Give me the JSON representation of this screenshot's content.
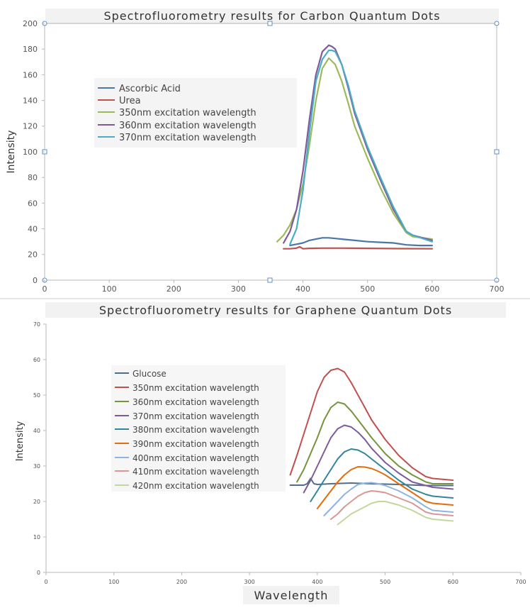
{
  "colors": {
    "axis": "#b8b8b8",
    "tick_text": "#555555",
    "title": "#333333",
    "legend_text": "#444444",
    "handle": "#5b8fc9"
  },
  "chart_data": [
    {
      "type": "line",
      "title": "Spectrofluorometry results for Carbon Quantum Dots",
      "xlabel": "",
      "ylabel": "Intensity",
      "xlim": [
        0,
        700
      ],
      "ylim": [
        0,
        200
      ],
      "xticks": [
        0,
        100,
        200,
        300,
        400,
        500,
        600,
        700
      ],
      "yticks": [
        0,
        20,
        40,
        60,
        80,
        100,
        120,
        140,
        160,
        180,
        200
      ],
      "grid": false,
      "legend_position": "left-middle",
      "series": [
        {
          "name": "Ascorbic Acid",
          "color": "#4a76a8",
          "x": [
            380,
            390,
            400,
            410,
            420,
            430,
            440,
            450,
            460,
            480,
            500,
            520,
            540,
            560,
            580,
            600
          ],
          "y": [
            27,
            28,
            29,
            31,
            32,
            33,
            33,
            32.5,
            32,
            31,
            30,
            29.5,
            29,
            27.5,
            27,
            27
          ]
        },
        {
          "name": "Urea",
          "color": "#c0504d",
          "x": [
            370,
            380,
            390,
            395,
            400,
            410,
            430,
            460,
            500,
            550,
            600
          ],
          "y": [
            24.5,
            24.5,
            25,
            26,
            24.5,
            24.8,
            25,
            25,
            24.8,
            24.6,
            24.5
          ]
        },
        {
          "name": "350nm excitation wavelength",
          "color": "#9bbb59",
          "x": [
            360,
            370,
            380,
            390,
            400,
            410,
            420,
            430,
            440,
            450,
            460,
            470,
            480,
            500,
            520,
            540,
            560,
            570,
            600
          ],
          "y": [
            30,
            35,
            43,
            55,
            75,
            105,
            140,
            165,
            173,
            168,
            155,
            138,
            120,
            95,
            72,
            52,
            37,
            34,
            32
          ]
        },
        {
          "name": "360nm excitation wavelength",
          "color": "#7f5a9a",
          "x": [
            370,
            380,
            390,
            400,
            410,
            420,
            430,
            440,
            445,
            450,
            460,
            470,
            480,
            500,
            520,
            540,
            560,
            570,
            600
          ],
          "y": [
            29,
            38,
            55,
            85,
            125,
            160,
            178,
            183,
            182,
            180,
            168,
            150,
            130,
            102,
            78,
            55,
            38,
            35,
            31
          ]
        },
        {
          "name": "370nm excitation wavelength",
          "color": "#4bacc6",
          "x": [
            380,
            390,
            400,
            410,
            420,
            430,
            440,
            445,
            450,
            460,
            470,
            480,
            500,
            520,
            540,
            560,
            570,
            600
          ],
          "y": [
            28,
            40,
            70,
            115,
            155,
            172,
            179,
            179,
            178,
            168,
            152,
            132,
            104,
            80,
            57,
            38,
            35,
            30
          ]
        }
      ]
    },
    {
      "type": "line",
      "title": "Spectrofluorometry results for Graphene Quantum Dots",
      "xlabel": "Wavelength",
      "ylabel": "Intensity",
      "xlim": [
        0,
        700
      ],
      "ylim": [
        0,
        70
      ],
      "xticks": [
        0,
        100,
        200,
        300,
        400,
        500,
        600,
        700
      ],
      "yticks": [
        0,
        10,
        20,
        30,
        40,
        50,
        60,
        70
      ],
      "grid": false,
      "legend_position": "left-middle",
      "series": [
        {
          "name": "Glucose",
          "color": "#4f6d8c",
          "x": [
            360,
            380,
            385,
            390,
            395,
            400,
            420,
            450,
            480,
            520,
            560,
            600
          ],
          "y": [
            24.6,
            24.6,
            25,
            26.5,
            25,
            24.8,
            25,
            25.2,
            25,
            24.8,
            24.5,
            24.5
          ]
        },
        {
          "name": "350nm excitation wavelength",
          "color": "#c0504d",
          "x": [
            360,
            370,
            380,
            390,
            400,
            410,
            420,
            430,
            440,
            450,
            460,
            470,
            480,
            500,
            520,
            540,
            560,
            570,
            600
          ],
          "y": [
            27.5,
            33,
            39,
            45,
            51,
            55,
            57,
            57.5,
            56.5,
            53.5,
            50,
            46.5,
            43,
            37.5,
            33,
            29.5,
            27,
            26.5,
            26
          ]
        },
        {
          "name": "360nm excitation wavelength",
          "color": "#77933c",
          "x": [
            370,
            380,
            390,
            400,
            410,
            420,
            430,
            440,
            450,
            460,
            470,
            480,
            500,
            520,
            540,
            560,
            570,
            600
          ],
          "y": [
            25.5,
            29,
            33.5,
            38,
            43,
            46.5,
            48,
            47.5,
            45.5,
            43,
            40.5,
            38,
            33.5,
            30,
            27.5,
            25.5,
            25,
            25
          ]
        },
        {
          "name": "370nm excitation wavelength",
          "color": "#7f5a9a",
          "x": [
            380,
            390,
            400,
            410,
            420,
            430,
            440,
            450,
            460,
            470,
            480,
            500,
            520,
            540,
            560,
            570,
            600
          ],
          "y": [
            22.5,
            26,
            30,
            34,
            38,
            40.5,
            41.5,
            41,
            39.5,
            37.5,
            35,
            31,
            28,
            25.5,
            24.5,
            24,
            23.5
          ]
        },
        {
          "name": "380nm excitation wavelength",
          "color": "#31859c",
          "x": [
            390,
            400,
            410,
            420,
            430,
            440,
            450,
            460,
            470,
            480,
            490,
            500,
            520,
            540,
            560,
            570,
            600
          ],
          "y": [
            20,
            23,
            26,
            29,
            32,
            34,
            34.8,
            34.5,
            33.5,
            32,
            30.5,
            29,
            26,
            23.5,
            22,
            21.5,
            21
          ]
        },
        {
          "name": "390nm excitation wavelength",
          "color": "#e46c0a",
          "x": [
            400,
            410,
            420,
            430,
            440,
            450,
            460,
            470,
            480,
            490,
            500,
            520,
            540,
            560,
            570,
            600
          ],
          "y": [
            18,
            20.5,
            23,
            25.5,
            27.5,
            29,
            29.8,
            29.7,
            29.3,
            28.5,
            27.5,
            25,
            22.5,
            20,
            19.5,
            19
          ]
        },
        {
          "name": "400nm excitation wavelength",
          "color": "#8eb4e3",
          "x": [
            410,
            420,
            430,
            440,
            450,
            460,
            470,
            480,
            490,
            500,
            520,
            540,
            560,
            570,
            600
          ],
          "y": [
            16,
            18,
            20,
            22,
            23.5,
            24.8,
            25.2,
            25.3,
            25,
            24.5,
            23,
            21,
            18.5,
            17.5,
            17
          ]
        },
        {
          "name": "410nm excitation wavelength",
          "color": "#d99694",
          "x": [
            420,
            430,
            440,
            450,
            460,
            470,
            480,
            490,
            500,
            520,
            540,
            560,
            570,
            600
          ],
          "y": [
            15,
            16.5,
            18.5,
            20,
            21.5,
            22.5,
            23,
            22.8,
            22.5,
            21,
            19.5,
            17,
            16.5,
            16
          ]
        },
        {
          "name": "420nm excitation wavelength",
          "color": "#c3d69b",
          "x": [
            430,
            440,
            450,
            460,
            470,
            480,
            490,
            500,
            510,
            520,
            540,
            560,
            570,
            600
          ],
          "y": [
            13.5,
            15,
            16.5,
            17.5,
            18.5,
            19.5,
            20,
            20,
            19.5,
            19,
            17.5,
            15.5,
            15,
            14.5
          ]
        }
      ]
    }
  ]
}
